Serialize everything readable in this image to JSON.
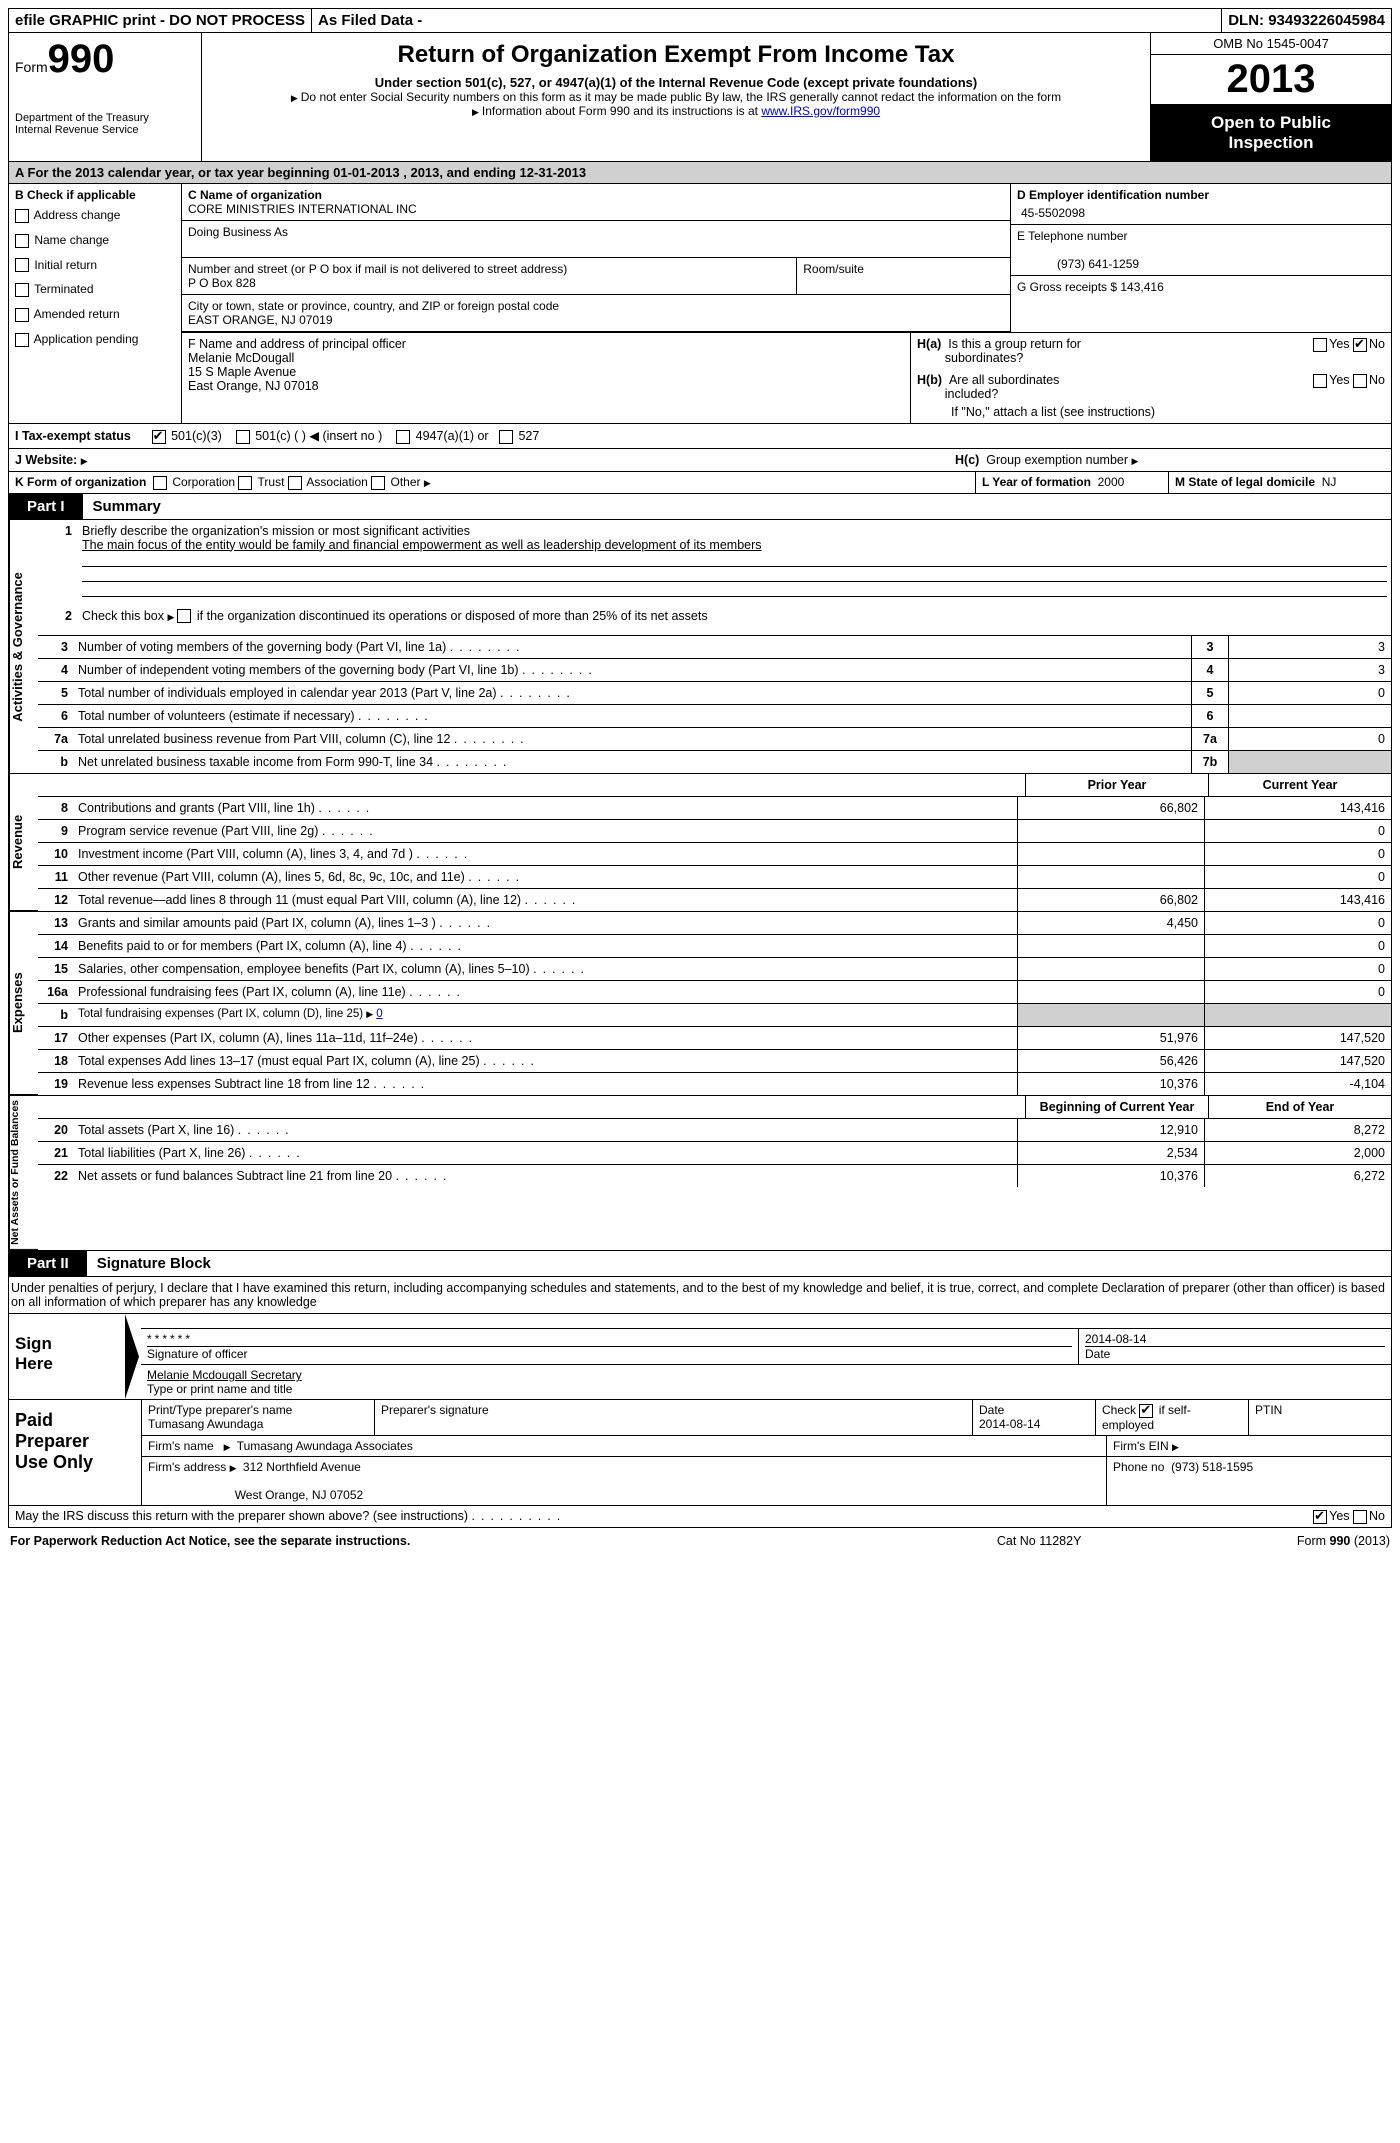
{
  "colors": {
    "header_gray": "#d0d0d0",
    "black": "#000000",
    "white": "#ffffff",
    "link": "#0000cc"
  },
  "topbar": {
    "efile": "efile GRAPHIC print - DO NOT PROCESS",
    "asfiled": "As Filed Data -",
    "dln_label": "DLN:",
    "dln": "93493226045984"
  },
  "header": {
    "form_label": "Form",
    "form_num": "990",
    "dept1": "Department of the Treasury",
    "dept2": "Internal Revenue Service",
    "title": "Return of Organization Exempt From Income Tax",
    "sub": "Under section 501(c), 527, or 4947(a)(1) of the Internal Revenue Code (except private foundations)",
    "note1": "Do not enter Social Security numbers on this form as it may be made public  By law, the IRS generally cannot redact the information on the form",
    "note2": "Information about Form 990 and its instructions is at",
    "note2_link": "www.IRS.gov/form990",
    "omb": "OMB No  1545-0047",
    "year": "2013",
    "open1": "Open to Public",
    "open2": "Inspection"
  },
  "section_a": "A  For the 2013 calendar year, or tax year beginning 01-01-2013    , 2013, and ending 12-31-2013",
  "col_b": {
    "title": "B  Check if applicable",
    "items": [
      "Address change",
      "Name change",
      "Initial return",
      "Terminated",
      "Amended return",
      "Application pending"
    ]
  },
  "col_c": {
    "name_label": "C Name of organization",
    "name": "CORE MINISTRIES INTERNATIONAL INC",
    "dba_label": "Doing Business As",
    "dba": "",
    "street_label": "Number and street (or P O  box if mail is not delivered to street address)",
    "room_label": "Room/suite",
    "street": "P O Box 828",
    "city_label": "City or town, state or province, country, and ZIP or foreign postal code",
    "city": "EAST ORANGE, NJ  07019"
  },
  "col_d": {
    "label": "D Employer identification number",
    "value": "45-5502098"
  },
  "col_e": {
    "label": "E Telephone number",
    "value": "(973) 641-1259"
  },
  "col_g": {
    "label": "G Gross receipts $",
    "value": "143,416"
  },
  "col_f": {
    "label": "F  Name and address of principal officer",
    "line1": "Melanie McDougall",
    "line2": "15 S Maple Avenue",
    "line3": "East Orange, NJ  07018"
  },
  "col_h": {
    "a_label": "H(a)  Is this a group return for subordinates?",
    "b_label": "H(b)  Are all subordinates included?",
    "b_note": "If \"No,\" attach a list  (see instructions)",
    "c_label": "H(c)   Group exemption number",
    "yes": "Yes",
    "no": "No"
  },
  "line_i": {
    "label": "I   Tax-exempt status",
    "opt1": "501(c)(3)",
    "opt2": "501(c) (   )",
    "opt2_note": "(insert no )",
    "opt3": "4947(a)(1) or",
    "opt4": "527"
  },
  "line_j": {
    "label": "J   Website:"
  },
  "line_k": {
    "label": "K Form of organization",
    "opts": [
      "Corporation",
      "Trust",
      "Association",
      "Other"
    ]
  },
  "line_l": {
    "label": "L Year of formation",
    "value": "2000"
  },
  "line_m": {
    "label": "M State of legal domicile",
    "value": "NJ"
  },
  "part1": {
    "tab": "Part I",
    "title": "Summary"
  },
  "activities": {
    "label": "Activities & Governance",
    "q1_num": "1",
    "q1": "Briefly describe the organization's mission or most significant activities",
    "q1_ans": "The main focus of the entity would be family and financial empowerment as well as leadership development of its members",
    "q2_num": "2",
    "q2": "Check this box",
    "q2_suffix": "if the organization discontinued its operations or disposed of more than 25% of its net assets",
    "rows": [
      {
        "n": "3",
        "t": "Number of voting members of the governing body (Part VI, line 1a)",
        "box": "3",
        "v": "3"
      },
      {
        "n": "4",
        "t": "Number of independent voting members of the governing body (Part VI, line 1b)",
        "box": "4",
        "v": "3"
      },
      {
        "n": "5",
        "t": "Total number of individuals employed in calendar year 2013 (Part V, line 2a)",
        "box": "5",
        "v": "0"
      },
      {
        "n": "6",
        "t": "Total number of volunteers (estimate if necessary)",
        "box": "6",
        "v": ""
      },
      {
        "n": "7a",
        "t": "Total unrelated business revenue from Part VIII, column (C), line 12",
        "box": "7a",
        "v": "0"
      },
      {
        "n": "b",
        "t": "Net unrelated business taxable income from Form 990-T, line 34",
        "box": "7b",
        "v": "",
        "gray": true
      }
    ]
  },
  "headers_two": {
    "prior": "Prior Year",
    "current": "Current Year"
  },
  "revenue": {
    "label": "Revenue",
    "rows": [
      {
        "n": "8",
        "t": "Contributions and grants (Part VIII, line 1h)",
        "p": "66,802",
        "c": "143,416"
      },
      {
        "n": "9",
        "t": "Program service revenue (Part VIII, line 2g)",
        "p": "",
        "c": "0"
      },
      {
        "n": "10",
        "t": "Investment income (Part VIII, column (A), lines 3, 4, and 7d )",
        "p": "",
        "c": "0"
      },
      {
        "n": "11",
        "t": "Other revenue (Part VIII, column (A), lines 5, 6d, 8c, 9c, 10c, and 11e)",
        "p": "",
        "c": "0"
      },
      {
        "n": "12",
        "t": "Total revenue—add lines 8 through 11 (must equal Part VIII, column (A), line 12)",
        "p": "66,802",
        "c": "143,416"
      }
    ]
  },
  "expenses": {
    "label": "Expenses",
    "rows": [
      {
        "n": "13",
        "t": "Grants and similar amounts paid (Part IX, column (A), lines 1–3 )",
        "p": "4,450",
        "c": "0"
      },
      {
        "n": "14",
        "t": "Benefits paid to or for members (Part IX, column (A), line 4)",
        "p": "",
        "c": "0"
      },
      {
        "n": "15",
        "t": "Salaries, other compensation, employee benefits (Part IX, column (A), lines 5–10)",
        "p": "",
        "c": "0"
      },
      {
        "n": "16a",
        "t": "Professional fundraising fees (Part IX, column (A), line 11e)",
        "p": "",
        "c": "0"
      }
    ],
    "b_num": "b",
    "b_text": "Total fundraising expenses (Part IX, column (D), line 25)",
    "b_val": "0",
    "rows2": [
      {
        "n": "17",
        "t": "Other expenses (Part IX, column (A), lines 11a–11d, 11f–24e)",
        "p": "51,976",
        "c": "147,520"
      },
      {
        "n": "18",
        "t": "Total expenses  Add lines 13–17 (must equal Part IX, column (A), line 25)",
        "p": "56,426",
        "c": "147,520"
      },
      {
        "n": "19",
        "t": "Revenue less expenses  Subtract line 18 from line 12",
        "p": "10,376",
        "c": "-4,104"
      }
    ]
  },
  "netassets": {
    "label": "Net Assets or Fund Balances",
    "h1": "Beginning of Current Year",
    "h2": "End of Year",
    "rows": [
      {
        "n": "20",
        "t": "Total assets (Part X, line 16)",
        "p": "12,910",
        "c": "8,272"
      },
      {
        "n": "21",
        "t": "Total liabilities (Part X, line 26)",
        "p": "2,534",
        "c": "2,000"
      },
      {
        "n": "22",
        "t": "Net assets or fund balances  Subtract line 21 from line 20",
        "p": "10,376",
        "c": "6,272"
      }
    ]
  },
  "part2": {
    "tab": "Part II",
    "title": "Signature Block"
  },
  "perjury": "Under penalties of perjury, I declare that I have examined this return, including accompanying schedules and statements, and to the best of my knowledge and belief, it is true, correct, and complete  Declaration of preparer (other than officer) is based on all information of which preparer has any knowledge",
  "sign": {
    "label": "Sign Here",
    "stars": "******",
    "sig_label": "Signature of officer",
    "date": "2014-08-14",
    "date_label": "Date",
    "name": "Melanie Mcdougall Secretary",
    "name_label": "Type or print name and title"
  },
  "paid": {
    "label": "Paid Preparer Use Only",
    "h_prep": "Print/Type preparer's name",
    "prep_name": "Tumasang Awundaga",
    "h_sig": "Preparer's signature",
    "h_date": "Date",
    "date": "2014-08-14",
    "h_check": "Check",
    "h_check2": "if self-employed",
    "h_ptin": "PTIN",
    "firm_label": "Firm's name",
    "firm_name": "Tumasang Awundaga Associates",
    "ein_label": "Firm's  EIN",
    "addr_label": "Firm's address",
    "addr1": "312 Northfield Avenue",
    "addr2": "West Orange, NJ  07052",
    "phone_label": "Phone no",
    "phone": "(973) 518-1595"
  },
  "discuss": {
    "text": "May the IRS discuss this return with the preparer shown above? (see instructions)",
    "yes": "Yes",
    "no": "No"
  },
  "footer": {
    "left": "For Paperwork Reduction Act Notice, see the separate instructions.",
    "mid": "Cat  No  11282Y",
    "right_label": "Form",
    "right_form": "990",
    "right_year": "(2013)"
  }
}
